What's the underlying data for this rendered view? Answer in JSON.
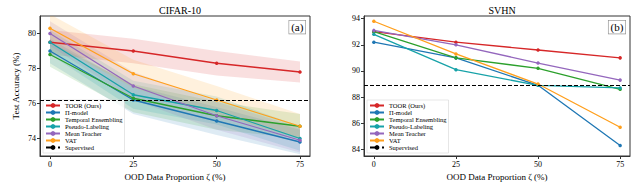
{
  "chart_data": [
    {
      "type": "line",
      "title": "CIFAR-10",
      "panel_label": "(a)",
      "x_label": "OOD Data Proportion ζ (%)",
      "y_label": "Test Accuracy (%)",
      "x": [
        0,
        25,
        50,
        75
      ],
      "xlim": [
        -3,
        78
      ],
      "xticks": [
        0,
        25,
        50,
        75
      ],
      "ylim": [
        73,
        81
      ],
      "yticks": [
        74,
        76,
        78,
        80
      ],
      "grid": false,
      "legend": "lower left",
      "series": [
        {
          "name": "TOOR (Ours)",
          "color": "#d62728",
          "marker": "circle",
          "values": [
            79.5,
            79.0,
            78.3,
            77.8
          ],
          "std": [
            0.7,
            0.7,
            0.7,
            0.6
          ]
        },
        {
          "name": "Π-model",
          "color": "#1f77b4",
          "marker": "circle",
          "values": [
            79.0,
            76.2,
            75.0,
            73.8
          ],
          "std": [
            0.7,
            0.8,
            0.8,
            0.7
          ]
        },
        {
          "name": "Temporal Ensembling",
          "color": "#2ca02c",
          "marker": "circle",
          "values": [
            78.8,
            76.3,
            75.3,
            74.7
          ],
          "std": [
            0.7,
            0.8,
            0.8,
            0.7
          ]
        },
        {
          "name": "Pseudo-Labeling",
          "color": "#17a2a8",
          "marker": "circle",
          "values": [
            79.5,
            76.5,
            75.6,
            74.0
          ],
          "std": [
            0.7,
            0.8,
            0.8,
            0.7
          ]
        },
        {
          "name": "Mean Teacher",
          "color": "#9467bd",
          "marker": "circle",
          "values": [
            80.0,
            77.0,
            75.3,
            73.9
          ],
          "std": [
            0.7,
            0.8,
            0.8,
            0.7
          ]
        },
        {
          "name": "VAT",
          "color": "#ff9f1c",
          "marker": "circle",
          "values": [
            80.3,
            77.7,
            76.2,
            74.7
          ],
          "std": [
            0.8,
            0.8,
            0.8,
            0.7
          ]
        },
        {
          "name": "Supervised",
          "color": "#000000",
          "line_style": "dashed",
          "value": 76.2
        }
      ]
    },
    {
      "type": "line",
      "title": "SVHN",
      "panel_label": "(b)",
      "x_label": "OOD Data Proportion ζ (%)",
      "y_label": "",
      "x": [
        0,
        25,
        50,
        75
      ],
      "xlim": [
        -3,
        78
      ],
      "xticks": [
        0,
        25,
        50,
        75
      ],
      "ylim": [
        83.5,
        94.2
      ],
      "yticks": [
        84,
        86,
        88,
        90,
        92,
        94
      ],
      "grid": false,
      "legend": "lower left",
      "series": [
        {
          "name": "TOOR (Ours)",
          "color": "#d62728",
          "marker": "circle",
          "values": [
            93.0,
            92.2,
            91.6,
            91.0
          ]
        },
        {
          "name": "Π-model",
          "color": "#1f77b4",
          "marker": "circle",
          "values": [
            92.2,
            91.0,
            88.9,
            84.3
          ]
        },
        {
          "name": "Temporal Ensembling",
          "color": "#2ca02c",
          "marker": "circle",
          "values": [
            93.0,
            91.0,
            90.2,
            88.6
          ]
        },
        {
          "name": "Pseudo-Labeling",
          "color": "#17a2a8",
          "marker": "circle",
          "values": [
            92.8,
            90.1,
            88.9,
            88.7
          ]
        },
        {
          "name": "Mean Teacher",
          "color": "#9467bd",
          "marker": "circle",
          "values": [
            93.1,
            92.0,
            90.6,
            89.3
          ]
        },
        {
          "name": "VAT",
          "color": "#ff9f1c",
          "marker": "circle",
          "values": [
            93.8,
            91.3,
            89.0,
            85.7
          ]
        },
        {
          "name": "Supervised",
          "color": "#000000",
          "line_style": "dashed",
          "value": 88.9
        }
      ]
    }
  ]
}
